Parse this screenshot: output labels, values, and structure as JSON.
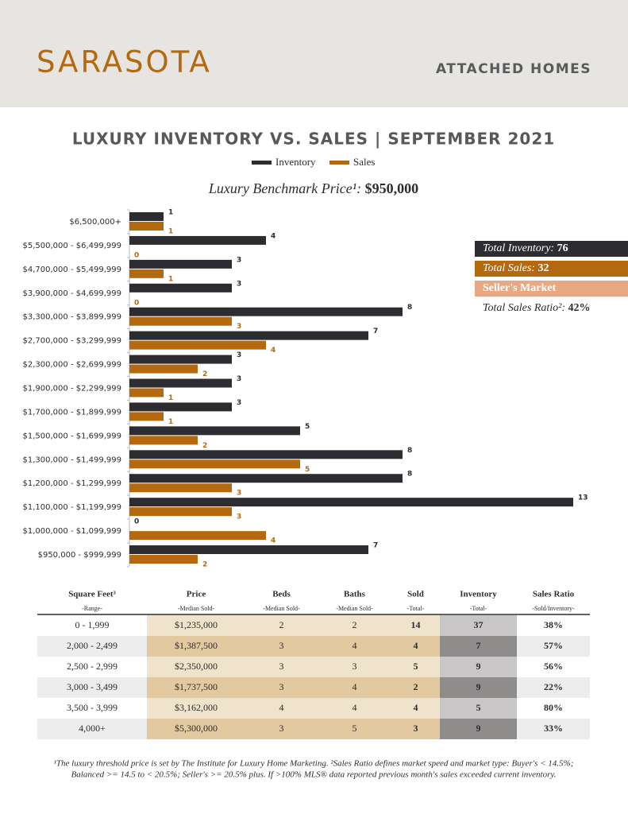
{
  "header": {
    "title": "SARASOTA",
    "subtitle": "ATTACHED HOMES"
  },
  "chart_data": {
    "type": "barh",
    "title": "LUXURY INVENTORY VS. SALES | SEPTEMBER 2021",
    "subtitle": {
      "label": "Luxury Benchmark Price¹:",
      "value": "$950,000"
    },
    "categories": [
      "$6,500,000+",
      "$5,500,000 - $6,499,999",
      "$4,700,000 - $5,499,999",
      "$3,900,000 - $4,699,999",
      "$3,300,000 - $3,899,999",
      "$2,700,000 - $3,299,999",
      "$2,300,000 - $2,699,999",
      "$1,900,000 - $2,299,999",
      "$1,700,000 - $1,899,999",
      "$1,500,000 - $1,699,999",
      "$1,300,000 - $1,499,999",
      "$1,200,000 - $1,299,999",
      "$1,100,000 - $1,199,999",
      "$1,000,000 - $1,099,999",
      "$950,000 - $999,999"
    ],
    "series": [
      {
        "name": "Inventory",
        "color": "#2d2c30",
        "values": [
          1,
          4,
          3,
          3,
          8,
          7,
          3,
          3,
          3,
          5,
          8,
          8,
          13,
          0,
          7
        ]
      },
      {
        "name": "Sales",
        "color": "#b5690f",
        "values": [
          1,
          0,
          1,
          0,
          3,
          4,
          2,
          1,
          1,
          2,
          5,
          3,
          3,
          4,
          2
        ]
      }
    ]
  },
  "summary": [
    {
      "label": "Total Inventory:",
      "value": "76"
    },
    {
      "label": "Total Sales:",
      "value": "32"
    },
    {
      "label": "Seller's Market"
    },
    {
      "label": "Total Sales Ratio²:",
      "value": "42%"
    }
  ],
  "table": {
    "columns": [
      {
        "title": "Square Feet³",
        "subtitle": "-Range-"
      },
      {
        "title": "Price",
        "subtitle": "-Median Sold-"
      },
      {
        "title": "Beds",
        "subtitle": "-Median Sold-"
      },
      {
        "title": "Baths",
        "subtitle": "-Median Sold-"
      },
      {
        "title": "Sold",
        "subtitle": "-Total-"
      },
      {
        "title": "Inventory",
        "subtitle": "-Total-"
      },
      {
        "title": "Sales Ratio",
        "subtitle": "-Sold/Inventory-"
      }
    ],
    "rows": [
      [
        "0 - 1,999",
        "$1,235,000",
        "2",
        "2",
        "14",
        "37",
        "38%"
      ],
      [
        "2,000 - 2,499",
        "$1,387,500",
        "3",
        "4",
        "4",
        "7",
        "57%"
      ],
      [
        "2,500 - 2,999",
        "$2,350,000",
        "3",
        "3",
        "5",
        "9",
        "56%"
      ],
      [
        "3,000 - 3,499",
        "$1,737,500",
        "3",
        "4",
        "2",
        "9",
        "22%"
      ],
      [
        "3,500 - 3,999",
        "$3,162,000",
        "4",
        "4",
        "4",
        "5",
        "80%"
      ],
      [
        "4,000+",
        "$5,300,000",
        "3",
        "5",
        "3",
        "9",
        "33%"
      ]
    ]
  },
  "footnote": [
    "¹The luxury threshold price is set by The Institute for Luxury Home Marketing. ²Sales Ratio defines market speed and market type: Buyer's < 14.5%;",
    "Balanced >= 14.5 to < 20.5%; Seller's >= 20.5% plus. If >100% MLS® data reported previous month's sales exceeded current inventory."
  ]
}
